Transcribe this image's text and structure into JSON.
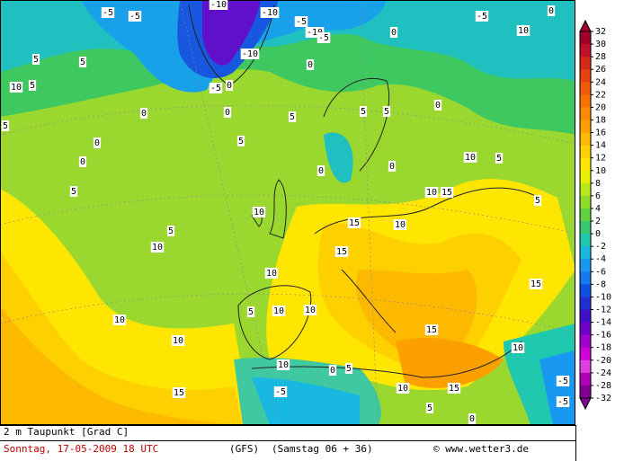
{
  "map": {
    "title": "2 m Taupunkt [Grad C]",
    "date": "Sonntag, 17-05-2009  18 UTC",
    "model": "(GFS)",
    "run": "(Samstag 06 + 36)",
    "credit": "© www.wetter3.de",
    "scale": {
      "labels": [
        32,
        30,
        28,
        26,
        24,
        22,
        20,
        18,
        16,
        14,
        12,
        10,
        8,
        6,
        4,
        2,
        0,
        -2,
        -4,
        -6,
        -8,
        -10,
        -12,
        -14,
        -16,
        -18,
        -20,
        -24,
        -28,
        -32
      ],
      "colors": [
        "#a0002a",
        "#c0102a",
        "#d82818",
        "#e84010",
        "#f05a08",
        "#f87000",
        "#fa8a00",
        "#fca000",
        "#fdb800",
        "#fed000",
        "#ffe600",
        "#e8f000",
        "#b8e818",
        "#8cdc28",
        "#60d040",
        "#38c870",
        "#20c8b0",
        "#18b8e0",
        "#1898f0",
        "#1878f0",
        "#1050e0",
        "#2030d0",
        "#4010c8",
        "#7000c8",
        "#a000d0",
        "#d000d8",
        "#e040e0",
        "#b000b8",
        "#800090"
      ]
    },
    "contour_labels": [
      "-5",
      "-5",
      "-10",
      "-10",
      "-5",
      "-10",
      "-5",
      "0",
      "-5",
      "10",
      "0",
      "5",
      "5",
      "10",
      "5",
      "-10",
      "-5",
      "0",
      "0",
      "0",
      "0",
      "5",
      "5",
      "5",
      "0",
      "5",
      "0",
      "5",
      "0",
      "0",
      "0",
      "10",
      "5",
      "5",
      "10",
      "15",
      "10",
      "15",
      "5",
      "5",
      "10",
      "10",
      "15",
      "10",
      "15",
      "10",
      "10",
      "5",
      "10",
      "10",
      "15",
      "10",
      "10",
      "0",
      "5",
      "15",
      "-5",
      "10",
      "15",
      "5",
      "0",
      "-5",
      "-5"
    ]
  }
}
